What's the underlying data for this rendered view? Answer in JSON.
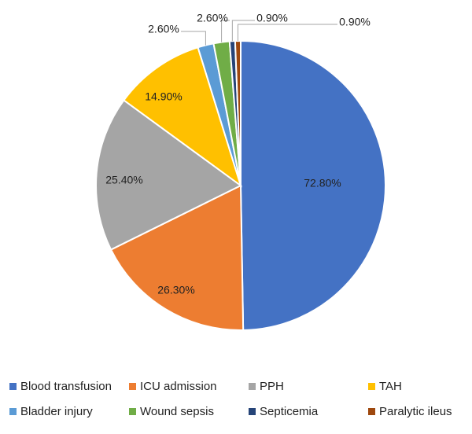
{
  "chart_data": {
    "type": "pie",
    "labels": [
      "Blood transfusion",
      "ICU admission",
      "PPH",
      "TAH",
      "Bladder injury",
      "Wound sepsis",
      "Septicemia",
      "Paralytic ileus"
    ],
    "values": [
      72.8,
      26.3,
      25.4,
      14.9,
      2.6,
      2.6,
      0.9,
      0.9
    ],
    "display_labels": [
      "72.80%",
      "26.30%",
      "25.40%",
      "14.90%",
      "2.60%",
      "2.60%",
      "0.90%",
      "0.90%"
    ],
    "colors": [
      "#4472C4",
      "#ED7D31",
      "#A5A5A5",
      "#FFC000",
      "#5B9BD5",
      "#70AD47",
      "#264478",
      "#9E480E"
    ],
    "start_angle_deg": 0,
    "direction": "clockwise",
    "legend_position": "bottom"
  }
}
